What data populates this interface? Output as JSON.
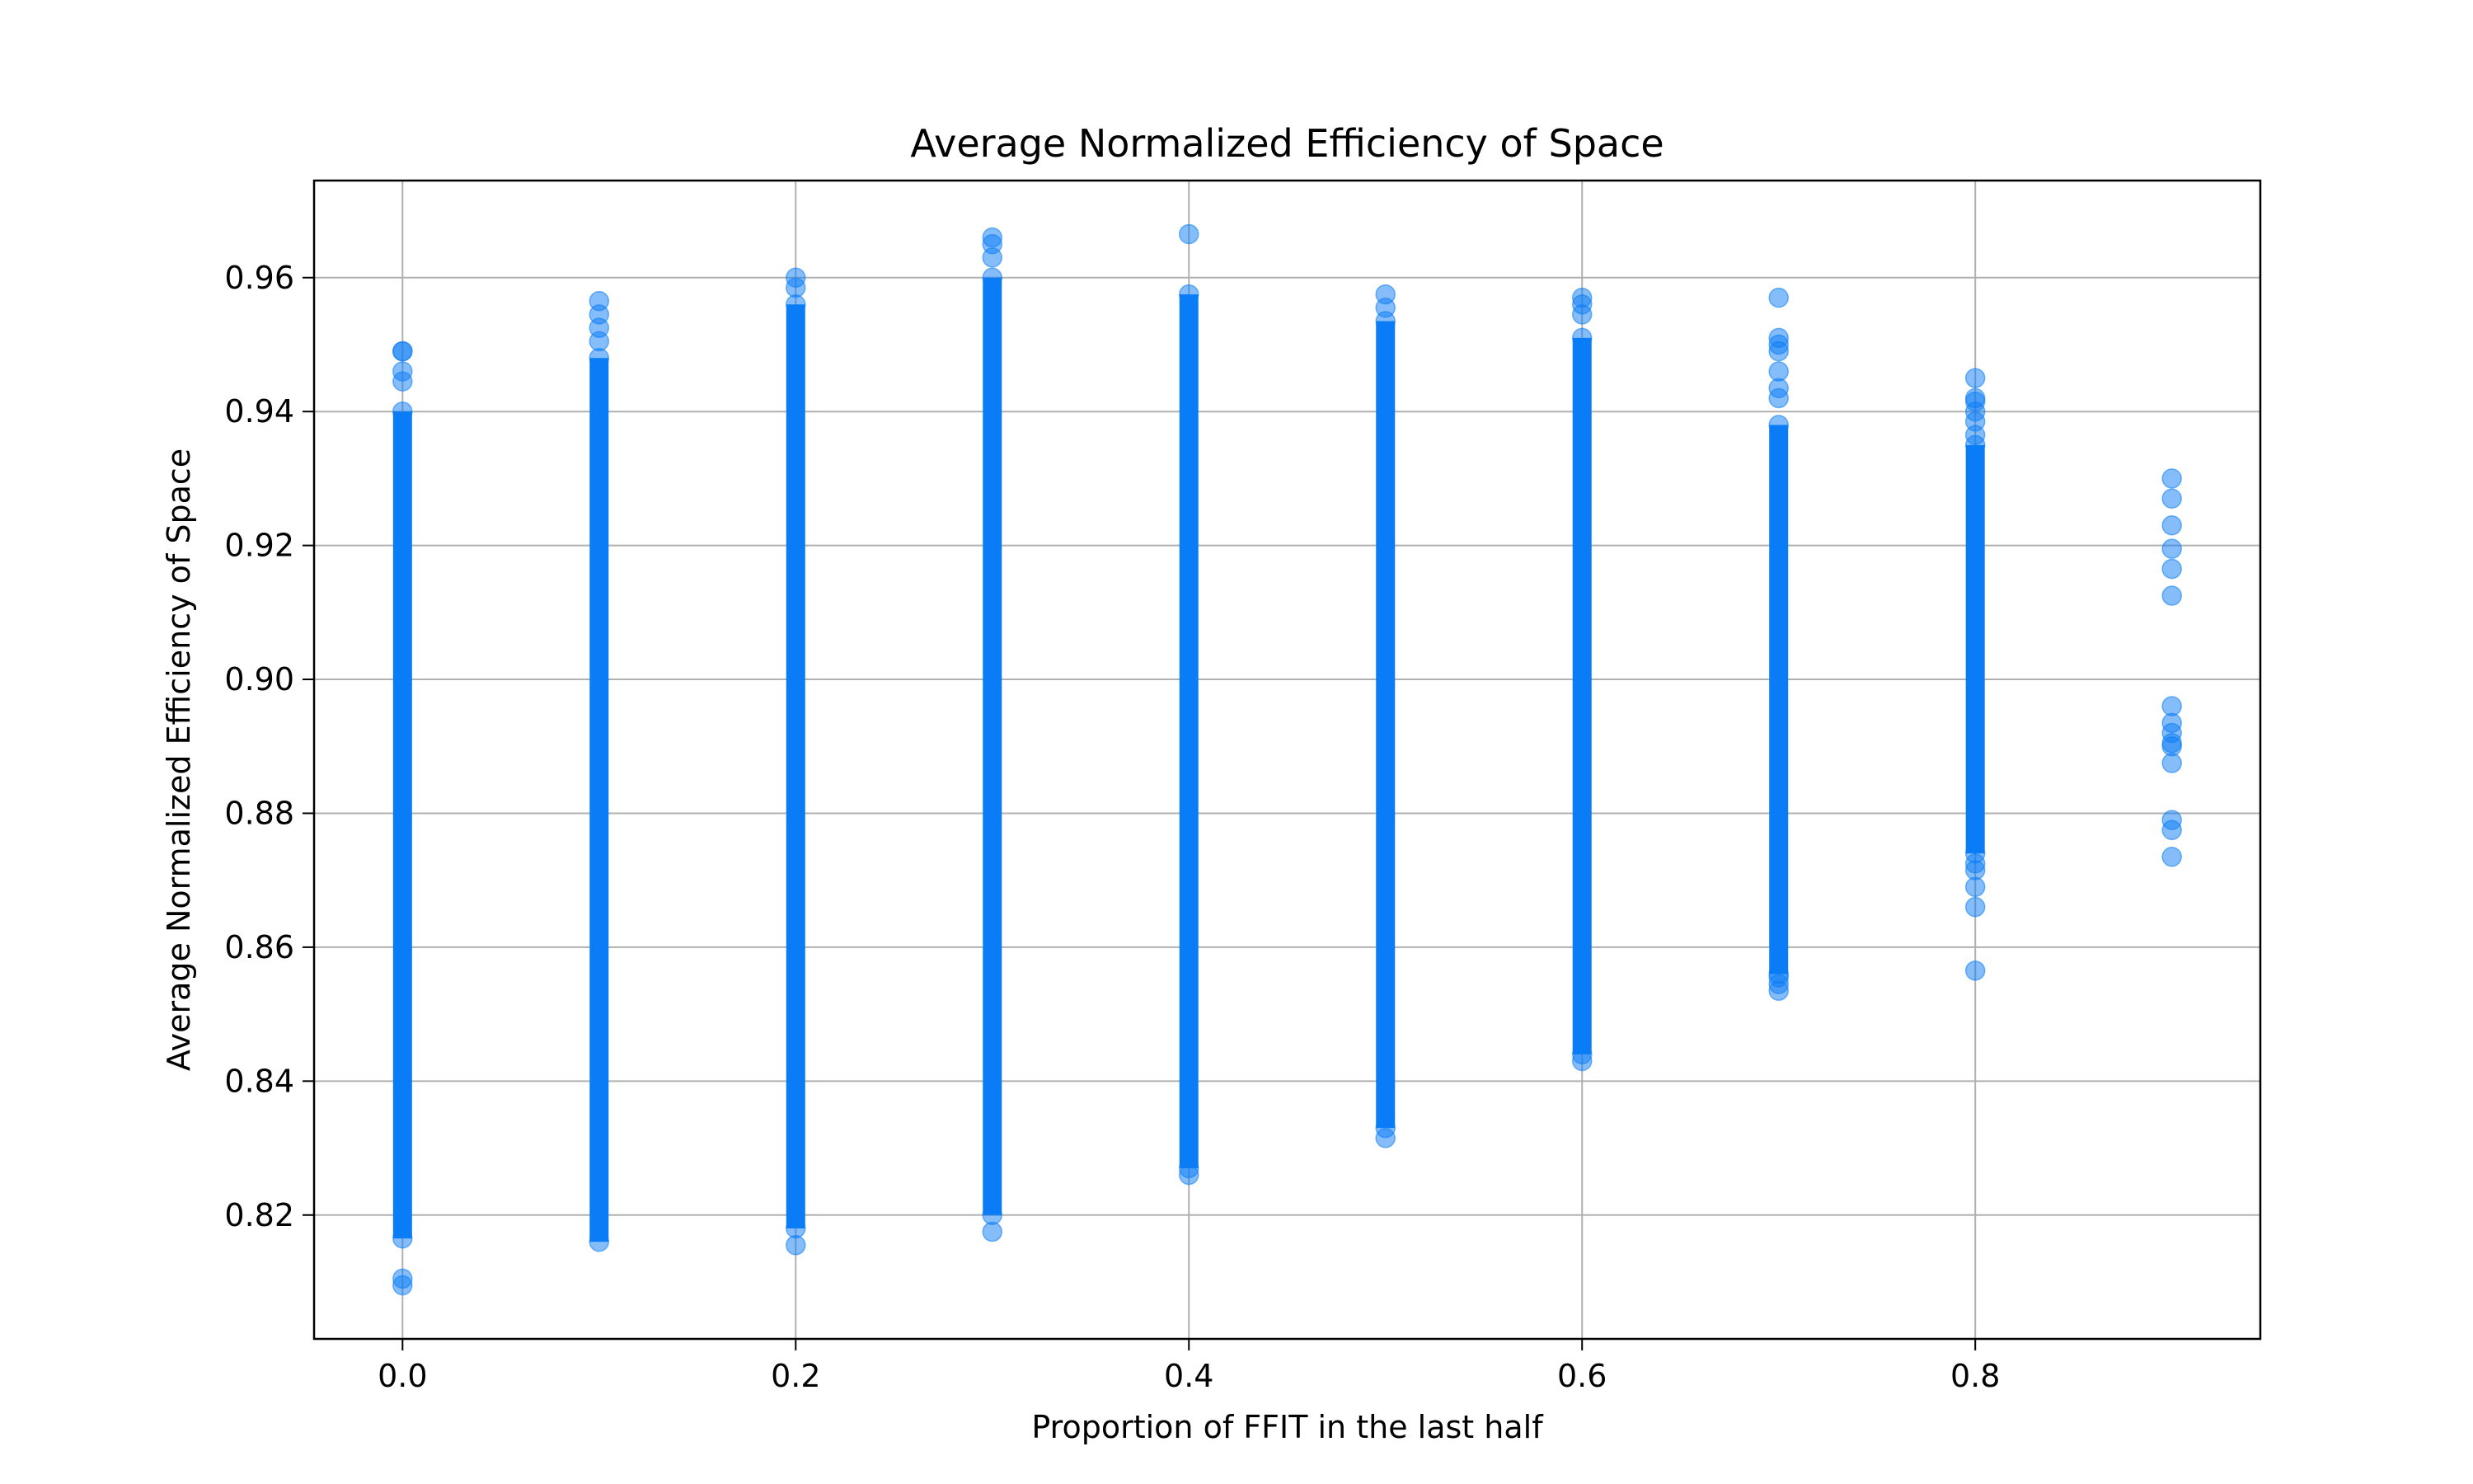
{
  "chart_data": {
    "type": "scatter",
    "title": "Average Normalized Efficiency of Space",
    "xlabel": "Proportion of FFIT in the last half",
    "ylabel": "Average Normalized Efficiency of Space",
    "xlim": [
      -0.045,
      0.945
    ],
    "ylim": [
      0.8015,
      0.9745
    ],
    "x_ticks": [
      "0.0",
      "0.2",
      "0.4",
      "0.6",
      "0.8"
    ],
    "x_tick_values": [
      0.0,
      0.2,
      0.4,
      0.6,
      0.8
    ],
    "y_ticks": [
      "0.82",
      "0.84",
      "0.86",
      "0.88",
      "0.90",
      "0.92",
      "0.94",
      "0.96"
    ],
    "y_tick_values": [
      0.82,
      0.84,
      0.86,
      0.88,
      0.9,
      0.92,
      0.94,
      0.96
    ],
    "grid": true,
    "marker_color": "#0a7cf5",
    "marker_alpha": 0.5,
    "groups": [
      {
        "x": 0.0,
        "dense_range": [
          0.8165,
          0.94
        ],
        "outliers": [
          0.8095,
          0.8105,
          0.9445,
          0.946,
          0.949,
          0.949
        ]
      },
      {
        "x": 0.1,
        "dense_range": [
          0.816,
          0.948
        ],
        "outliers": [
          0.9505,
          0.9525,
          0.9545,
          0.9565
        ]
      },
      {
        "x": 0.2,
        "dense_range": [
          0.818,
          0.956
        ],
        "outliers": [
          0.8155,
          0.9585,
          0.96
        ]
      },
      {
        "x": 0.3,
        "dense_range": [
          0.82,
          0.96
        ],
        "outliers": [
          0.8175,
          0.963,
          0.965,
          0.966
        ]
      },
      {
        "x": 0.4,
        "dense_range": [
          0.827,
          0.9575
        ],
        "outliers": [
          0.826,
          0.9665
        ]
      },
      {
        "x": 0.5,
        "dense_range": [
          0.833,
          0.9535
        ],
        "outliers": [
          0.8315,
          0.9555,
          0.9575
        ]
      },
      {
        "x": 0.6,
        "dense_range": [
          0.844,
          0.951
        ],
        "outliers": [
          0.843,
          0.9545,
          0.956,
          0.957
        ]
      },
      {
        "x": 0.7,
        "dense_range": [
          0.856,
          0.938
        ],
        "outliers": [
          0.8535,
          0.8545,
          0.8555,
          0.942,
          0.9435,
          0.946,
          0.949,
          0.95,
          0.951,
          0.957
        ]
      },
      {
        "x": 0.8,
        "dense_range": [
          0.874,
          0.935
        ],
        "outliers": [
          0.8565,
          0.866,
          0.869,
          0.8715,
          0.8725,
          0.9365,
          0.9385,
          0.94,
          0.9415,
          0.942,
          0.945
        ]
      },
      {
        "x": 0.9,
        "dense_range": null,
        "outliers": [
          0.8735,
          0.8775,
          0.879,
          0.8875,
          0.89,
          0.8905,
          0.892,
          0.8935,
          0.896,
          0.9125,
          0.9165,
          0.9195,
          0.923,
          0.927,
          0.93
        ]
      }
    ]
  }
}
